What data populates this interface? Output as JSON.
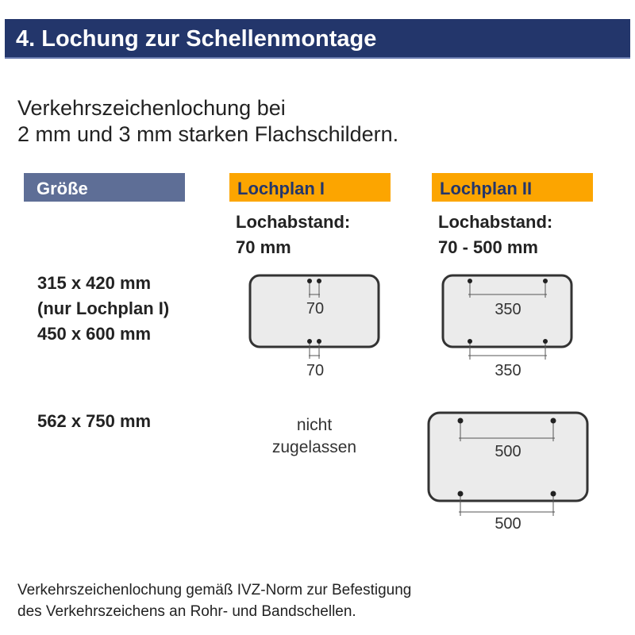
{
  "title": "4. Lochung zur Schellenmontage",
  "intro": {
    "line1": "Verkehrszeichenlochung bei",
    "line2": "2 mm und 3 mm starken Flachschildern."
  },
  "headers": {
    "size": "Größe",
    "plan1": "Lochplan I",
    "plan2": "Lochplan II"
  },
  "plan1": {
    "spacing_label": "Lochabstand:",
    "spacing_value": "70 mm"
  },
  "plan2": {
    "spacing_label": "Lochabstand:",
    "spacing_value": "70 - 500 mm"
  },
  "rows": [
    {
      "sizes": [
        "315 x 420 mm",
        "(nur Lochplan I)",
        "450 x 600 mm"
      ],
      "plan1": {
        "top": "70",
        "bottom": "70"
      },
      "plan2": {
        "top": "350",
        "bottom": "350"
      }
    },
    {
      "sizes": [
        "562 x 750 mm"
      ],
      "plan1_text": [
        "nicht",
        "zugelassen"
      ],
      "plan2": {
        "top": "500",
        "bottom": "500"
      }
    }
  ],
  "footer": {
    "line1": "Verkehrszeichenlochung gemäß IVZ-Norm zur Befestigung",
    "line2": "des Verkehrszeichens an Rohr- und Bandschellen."
  },
  "colors": {
    "title_bg": "#23366b",
    "size_header_bg": "#5e6e96",
    "plan_header_bg": "#fca500",
    "sign_fill": "#ebebeb"
  }
}
